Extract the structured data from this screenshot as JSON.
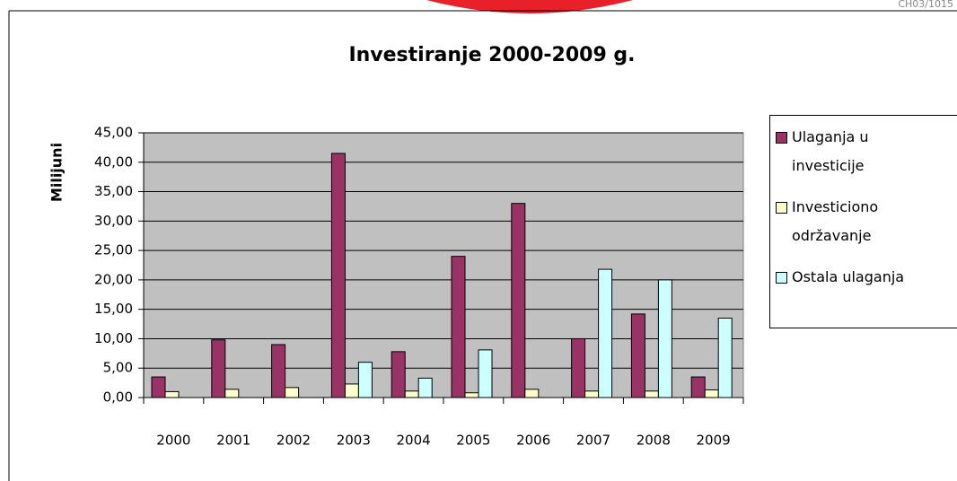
{
  "chart_data": {
    "type": "bar",
    "title": "Investiranje 2000-2009 g.",
    "annotation": "CH03/1015",
    "y_label": "Milijuni",
    "categories": [
      "2000",
      "2001",
      "2002",
      "2003",
      "2004",
      "2005",
      "2006",
      "2007",
      "2008",
      "2009"
    ],
    "series": [
      {
        "name": "Ulaganja u investicije",
        "color": "#993366",
        "values": [
          3.5,
          9.8,
          9.0,
          41.5,
          7.8,
          24.0,
          33.0,
          10.0,
          14.2,
          3.5
        ]
      },
      {
        "name": "Investiciono održavanje",
        "color": "#ffffcc",
        "values": [
          1.0,
          1.4,
          1.7,
          2.3,
          1.1,
          0.8,
          1.4,
          1.1,
          1.1,
          1.3
        ]
      },
      {
        "name": "Ostala ulaganja",
        "color": "#ccffff",
        "values": [
          null,
          null,
          null,
          6.0,
          3.3,
          8.1,
          null,
          21.8,
          20.0,
          13.5
        ]
      }
    ],
    "ylim": [
      0,
      45
    ],
    "yticks": [
      {
        "value": 0,
        "label": "0,00"
      },
      {
        "value": 5,
        "label": "5,00"
      },
      {
        "value": 10,
        "label": "10,00"
      },
      {
        "value": 15,
        "label": "15,00"
      },
      {
        "value": 20,
        "label": "20,00"
      },
      {
        "value": 25,
        "label": "25,00"
      },
      {
        "value": 30,
        "label": "30,00"
      },
      {
        "value": 35,
        "label": "35,00"
      },
      {
        "value": 40,
        "label": "40,00"
      },
      {
        "value": 45,
        "label": "45,00"
      }
    ],
    "grid": true,
    "legend": "right"
  }
}
